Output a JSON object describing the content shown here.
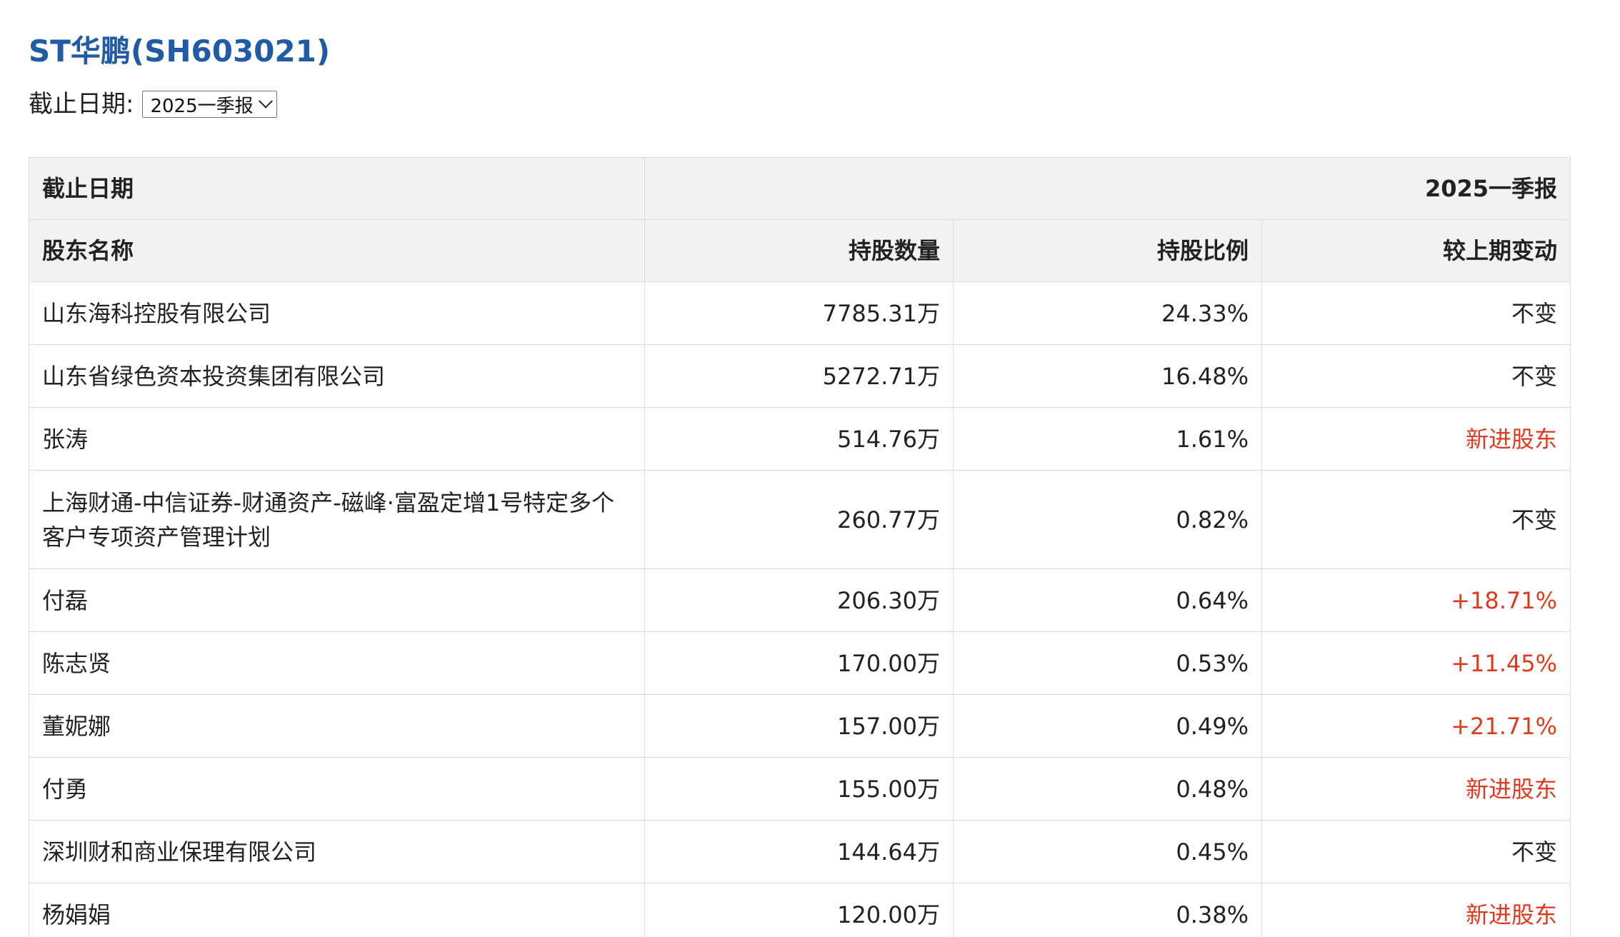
{
  "header": {
    "title": "ST华鹏(SH603021)",
    "date_label": "截止日期:",
    "date_selected": "2025一季报"
  },
  "table": {
    "period_row": {
      "label": "截止日期",
      "value": "2025一季报"
    },
    "columns": [
      "股东名称",
      "持股数量",
      "持股比例",
      "较上期变动"
    ],
    "rows": [
      {
        "name": "山东海科控股有限公司",
        "shares": "7785.31万",
        "ratio": "24.33%",
        "change": "不变"
      },
      {
        "name": "山东省绿色资本投资集团有限公司",
        "shares": "5272.71万",
        "ratio": "16.48%",
        "change": "不变"
      },
      {
        "name": "张涛",
        "shares": "514.76万",
        "ratio": "1.61%",
        "change": "新进股东"
      },
      {
        "name": "上海财通-中信证券-财通资产-磁峰·富盈定增1号特定多个客户专项资产管理计划",
        "shares": "260.77万",
        "ratio": "0.82%",
        "change": "不变"
      },
      {
        "name": "付磊",
        "shares": "206.30万",
        "ratio": "0.64%",
        "change": "+18.71%"
      },
      {
        "name": "陈志贤",
        "shares": "170.00万",
        "ratio": "0.53%",
        "change": "+11.45%"
      },
      {
        "name": "董妮娜",
        "shares": "157.00万",
        "ratio": "0.49%",
        "change": "+21.71%"
      },
      {
        "name": "付勇",
        "shares": "155.00万",
        "ratio": "0.48%",
        "change": "新进股东"
      },
      {
        "name": "深圳财和商业保理有限公司",
        "shares": "144.64万",
        "ratio": "0.45%",
        "change": "不变"
      },
      {
        "name": "杨娟娟",
        "shares": "120.00万",
        "ratio": "0.38%",
        "change": "新进股东"
      }
    ]
  },
  "colors": {
    "title": "#1f5ba6",
    "highlight_red": "#e03a1e",
    "header_bg": "#f2f2f2",
    "border": "#dcdcdc"
  },
  "icons": {
    "select_arrow": "chevron-down-icon"
  }
}
